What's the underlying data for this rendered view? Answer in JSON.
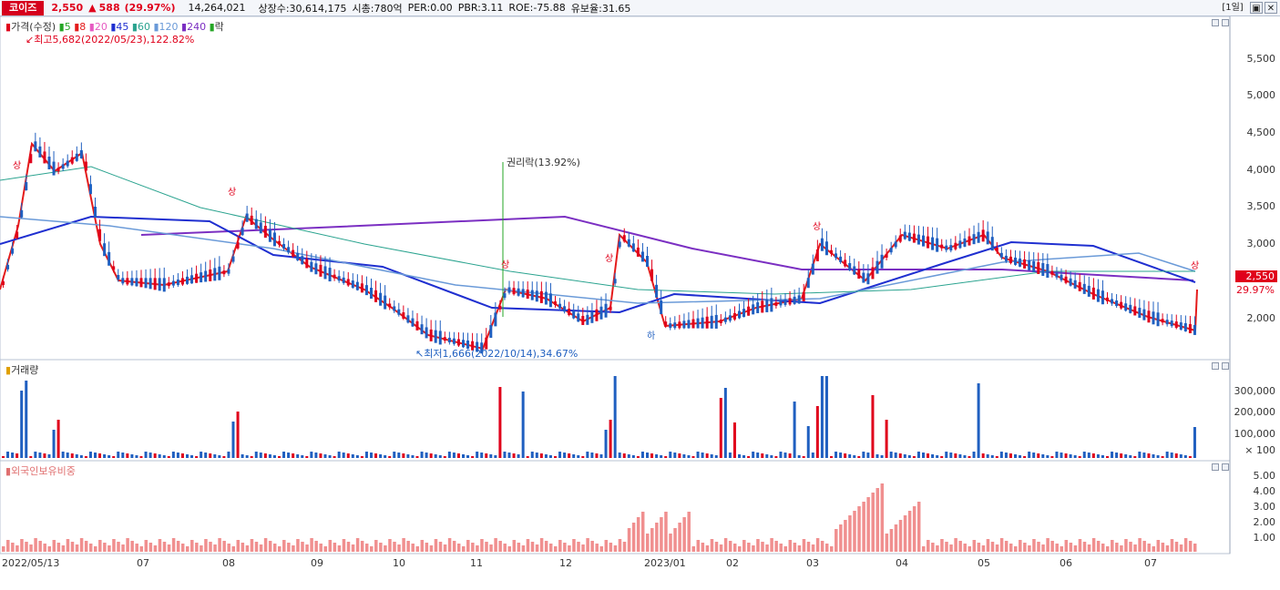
{
  "header": {
    "stock_name": "코이즈",
    "price": "2,550",
    "change_arrow": "▲",
    "change": "588",
    "change_pct": "(29.97%)",
    "volume": "14,264,021",
    "shares": "상장수:30,614,175",
    "market_cap": "시총:780억",
    "per": "PER:0.00",
    "pbr": "PBR:3.11",
    "roe": "ROE:-75.88",
    "float_ratio": "유보율:31.65",
    "period_button": "[1일]",
    "restore_button": "▣",
    "close_button": "✕"
  },
  "price_panel": {
    "legend": {
      "price": "가격(수정)",
      "ma": [
        {
          "label": "5",
          "color": "#24a524"
        },
        {
          "label": "8",
          "color": "#e41b1b"
        },
        {
          "label": "20",
          "color": "#e65ac2"
        },
        {
          "label": "45",
          "color": "#1f2fd0"
        },
        {
          "label": "60",
          "color": "#2aa38f"
        },
        {
          "label": "120",
          "color": "#6a9ad8"
        },
        {
          "label": "240",
          "color": "#7b2fc2"
        }
      ],
      "ex_rights": "락"
    },
    "high_annotation": "최고5,682(2022/05/23),122.82%",
    "low_annotation": "최저1,666(2022/10/14),34.67%",
    "rights_annotation": "권리락(13.92%)",
    "upper_limit_marker": "상",
    "lower_limit_marker": "하",
    "y_ticks": [
      "5,500",
      "5,000",
      "4,500",
      "4,000",
      "3,500",
      "3,000",
      "2,500",
      "2,000"
    ],
    "current_price_tag": "2,550",
    "current_change_tag": "29.97%"
  },
  "volume_panel": {
    "title": "거래량",
    "y_ticks": [
      "300,000",
      "200,000",
      "100,000",
      "× 100"
    ]
  },
  "foreign_panel": {
    "title": "외국인보유비중",
    "y_ticks": [
      "5.00",
      "4.00",
      "3.00",
      "2.00",
      "1.00"
    ]
  },
  "x_axis": [
    "2022/05/13",
    "07",
    "08",
    "09",
    "10",
    "11",
    "12",
    "2023/01",
    "02",
    "03",
    "04",
    "05",
    "06",
    "07"
  ],
  "colors": {
    "up": "#e0001b",
    "down": "#1f5fc0",
    "foreign_bar": "#f08f8f",
    "brand": "#d6001c"
  }
}
